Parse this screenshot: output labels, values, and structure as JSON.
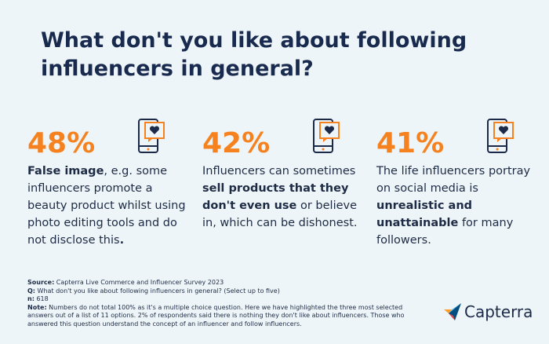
{
  "header": {
    "title": "What don't you like about following influencers in general?"
  },
  "stats": [
    {
      "value": "48%",
      "description": [
        {
          "text": "False image",
          "bold": true
        },
        {
          "text": ", e.g. some influencers promote a beauty product whilst using photo editing tools and do not disclose this",
          "bold": false
        },
        {
          "text": ".",
          "bold": true
        }
      ]
    },
    {
      "value": "42%",
      "description": [
        {
          "text": "Influencers can sometimes ",
          "bold": false
        },
        {
          "text": "sell products that they don't even use",
          "bold": true
        },
        {
          "text": " or believe in, which can be dishonest.",
          "bold": false
        }
      ]
    },
    {
      "value": "41%",
      "description": [
        {
          "text": "The life influencers portray on social media is ",
          "bold": false
        },
        {
          "text": "unrealistic and unattainable",
          "bold": true
        },
        {
          "text": " for many followers.",
          "bold": false
        }
      ]
    }
  ],
  "footer": [
    {
      "label": "Source:",
      "text": " Capterra Live Commerce and Influencer Survey 2023"
    },
    {
      "label": "Q:",
      "text": " What don't you like about following influencers in general? (Select up to five)"
    },
    {
      "label": "n:",
      "text": " 618"
    },
    {
      "label": "Note:",
      "text": " Numbers do not total 100% as it's a multiple choice question. Here we have highlighted the three most selected answers out of a list of 11 options. 2% of respondents said there is nothing they don't like about influencers. Those who answered this question understand the concept of an influencer and follow influencers."
    }
  ],
  "logo": "Capterra"
}
